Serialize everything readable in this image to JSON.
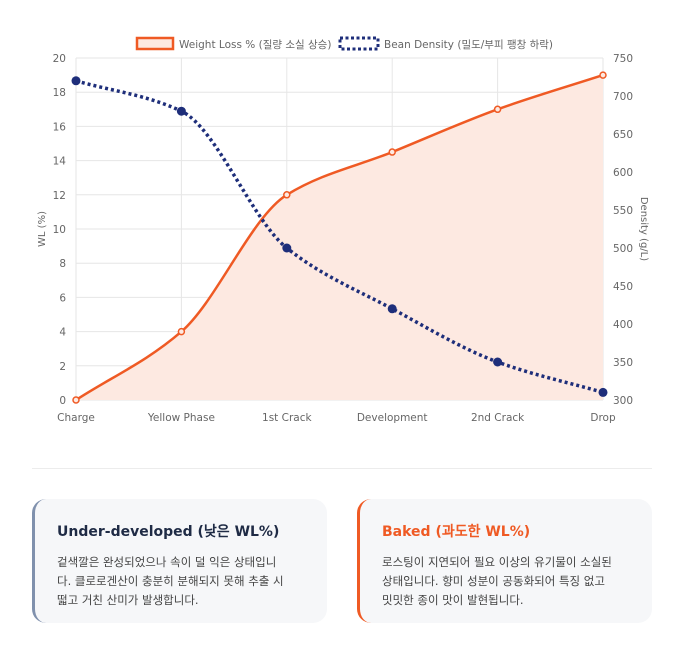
{
  "chart_data": {
    "type": "line",
    "categories": [
      "Charge",
      "Yellow Phase",
      "1st Crack",
      "Development",
      "2nd Crack",
      "Drop"
    ],
    "series": [
      {
        "name": "Weight Loss % (질량 소실 상승)",
        "axis": "left",
        "values": [
          0,
          4,
          12,
          14.5,
          17,
          19
        ],
        "color": "#ef5a24",
        "fill": "#fde9e1",
        "style": "solid"
      },
      {
        "name": "Bean Density (밀도/부피 팽창 하락)",
        "axis": "right",
        "values": [
          720,
          680,
          500,
          420,
          350,
          310
        ],
        "color": "#1e2e7a",
        "style": "dotted"
      }
    ],
    "ylabel": "WL (%)",
    "y2label": "Density (g/L)",
    "ylim": [
      0,
      20
    ],
    "y2lim": [
      300,
      750
    ],
    "yticks": [
      "0",
      "2",
      "4",
      "6",
      "8",
      "10",
      "12",
      "14",
      "16",
      "18",
      "20"
    ],
    "y2ticks": [
      "300",
      "350",
      "400",
      "450",
      "500",
      "550",
      "600",
      "650",
      "700",
      "750"
    ],
    "grid": true,
    "legend": "top-center"
  },
  "cards": [
    {
      "title": "Under-developed (낮은 WL%)",
      "lines": [
        "겉색깔은 완성되었으나 속이 덜 익은 상태입니",
        "다. 클로로겐산이 충분히 분해되지 못해 추출 시",
        "떫고 거친 산미가 발생합니다."
      ]
    },
    {
      "title": "Baked (과도한 WL%)",
      "lines": [
        "로스팅이 지연되어 필요 이상의 유기물이 소실된",
        "상태입니다. 향미 성분이 공동화되어 특징 없고",
        "밋밋한 종이 맛이 발현됩니다."
      ]
    }
  ]
}
